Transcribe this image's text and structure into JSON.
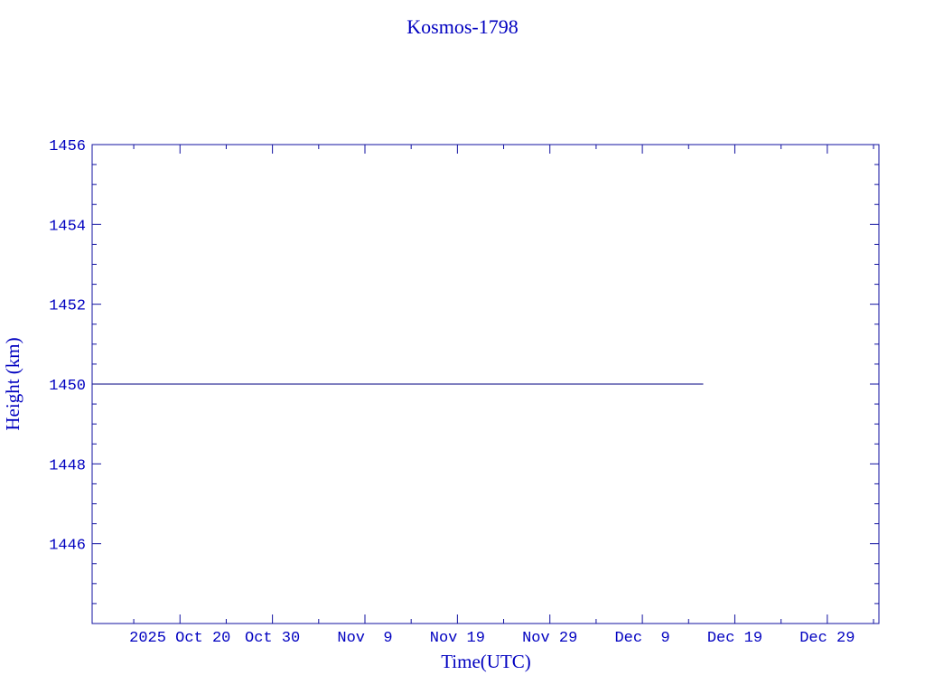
{
  "chart_data": {
    "type": "line",
    "title": "Kosmos-1798",
    "xlabel": "Time(UTC)",
    "ylabel": "Height (km)",
    "xlim": [
      "2025-10-10T12:00:00Z",
      "2026-01-03T14:00:00Z"
    ],
    "ylim": [
      1444,
      1456
    ],
    "x_ticks": [
      "2025-10-20",
      "2025-10-30",
      "2025-11-09",
      "2025-11-19",
      "2025-11-29",
      "2025-12-09",
      "2025-12-19",
      "2025-12-29"
    ],
    "x_tick_labels": [
      "2025 Oct 20",
      "Oct 30",
      "Nov  9",
      "Nov 19",
      "Nov 29",
      "Dec  9",
      "Dec 19",
      "Dec 29"
    ],
    "y_ticks": [
      1446,
      1448,
      1450,
      1452,
      1454,
      1456
    ],
    "y_tick_labels": [
      "1446",
      "1448",
      "1450",
      "1452",
      "1454",
      "1456"
    ],
    "grid": false,
    "series": [
      {
        "x": [
          "2025-10-10T12:00:00Z",
          "2025-12-15T14:00:00Z"
        ],
        "y": [
          1450,
          1450
        ],
        "color": "#000080"
      }
    ],
    "colors": {
      "axis": "#1010a0",
      "text": "#0000c0"
    }
  }
}
